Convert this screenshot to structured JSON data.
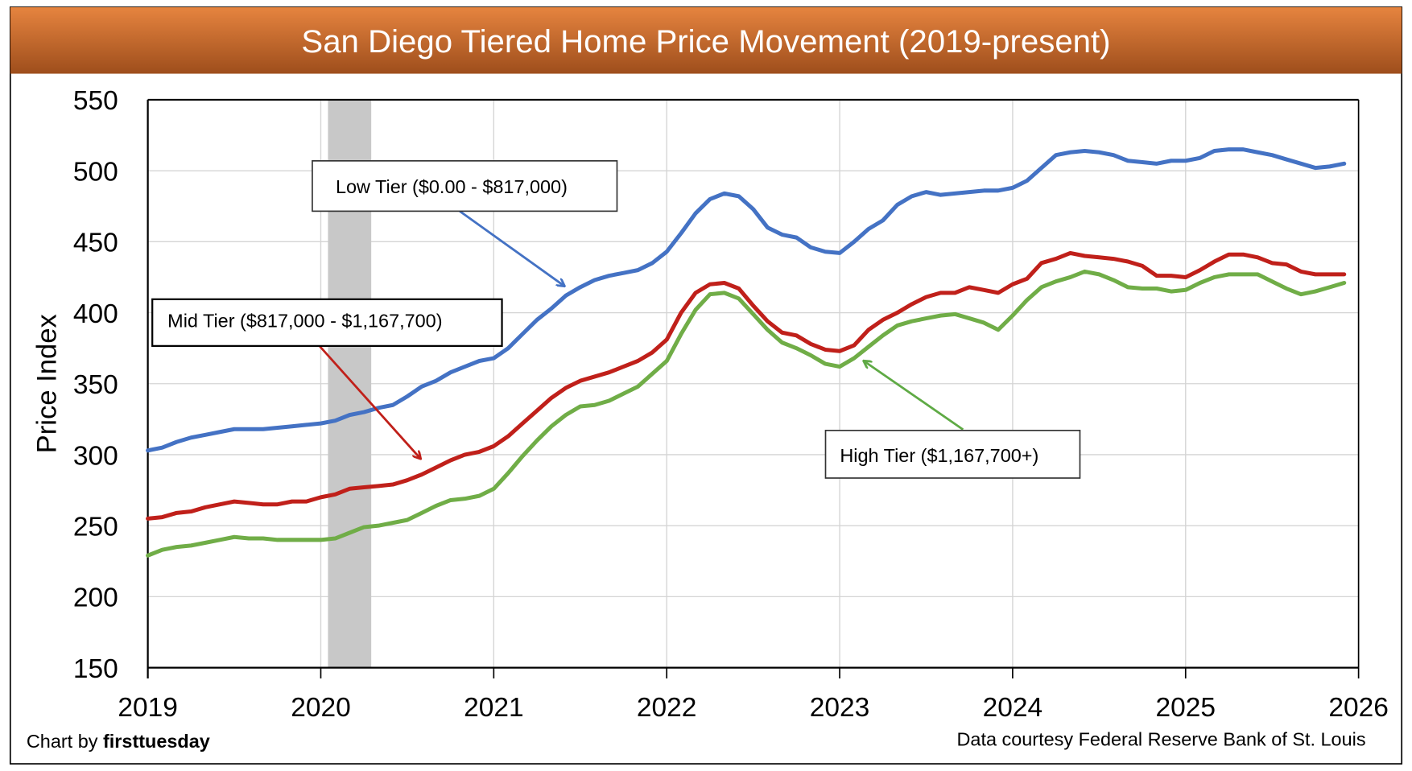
{
  "chart_data": {
    "type": "line",
    "title": "San Diego Tiered Home Price Movement (2019-present)",
    "xlabel": "",
    "ylabel": "Price Index",
    "ylim": [
      150,
      550
    ],
    "yticks": [
      "150",
      "200",
      "250",
      "300",
      "350",
      "400",
      "450",
      "500",
      "550"
    ],
    "xticks": [
      "2019",
      "2020",
      "2021",
      "2022",
      "2023",
      "2024",
      "2025",
      "2026"
    ],
    "x_start": "2019-01",
    "frequency": "monthly",
    "grid": true,
    "recession_shading": {
      "start": "2020-02",
      "end": "2020-04",
      "color": "#c8c8c8"
    },
    "series": [
      {
        "name": "Low Tier ($0.00 - $817,000)",
        "color": "#4472C4",
        "values": [
          303,
          305,
          309,
          312,
          314,
          316,
          318,
          318,
          318,
          319,
          320,
          321,
          322,
          324,
          328,
          330,
          333,
          335,
          341,
          348,
          352,
          358,
          362,
          366,
          368,
          375,
          385,
          395,
          403,
          412,
          418,
          423,
          426,
          428,
          430,
          435,
          443,
          456,
          470,
          480,
          484,
          482,
          473,
          460,
          455,
          453,
          446,
          443,
          442,
          450,
          459,
          465,
          476,
          482,
          485,
          483,
          484,
          485,
          486,
          486,
          488,
          493,
          502,
          511,
          513,
          514,
          513,
          511,
          507,
          506,
          505,
          507,
          507,
          509,
          514,
          515,
          515,
          513,
          511,
          508,
          505,
          502,
          503,
          505
        ]
      },
      {
        "name": "Mid Tier ($817,000 - $1,167,700)",
        "color": "#C0201A",
        "values": [
          255,
          256,
          259,
          260,
          263,
          265,
          267,
          266,
          265,
          265,
          267,
          267,
          270,
          272,
          276,
          277,
          278,
          279,
          282,
          286,
          291,
          296,
          300,
          302,
          306,
          313,
          322,
          331,
          340,
          347,
          352,
          355,
          358,
          362,
          366,
          372,
          381,
          400,
          414,
          420,
          421,
          417,
          405,
          394,
          386,
          384,
          378,
          374,
          373,
          377,
          388,
          395,
          400,
          406,
          411,
          414,
          414,
          418,
          416,
          414,
          420,
          424,
          435,
          438,
          442,
          440,
          439,
          438,
          436,
          433,
          426,
          426,
          425,
          430,
          436,
          441,
          441,
          439,
          435,
          434,
          429,
          427,
          427,
          427
        ]
      },
      {
        "name": "High Tier ($1,167,700+)",
        "color": "#70AD47",
        "values": [
          229,
          233,
          235,
          236,
          238,
          240,
          242,
          241,
          241,
          240,
          240,
          240,
          240,
          241,
          245,
          249,
          250,
          252,
          254,
          259,
          264,
          268,
          269,
          271,
          276,
          287,
          299,
          310,
          320,
          328,
          334,
          335,
          338,
          343,
          348,
          357,
          366,
          385,
          402,
          413,
          414,
          410,
          399,
          388,
          379,
          375,
          370,
          364,
          362,
          368,
          376,
          384,
          391,
          394,
          396,
          398,
          399,
          396,
          393,
          388,
          398,
          409,
          418,
          422,
          425,
          429,
          427,
          423,
          418,
          417,
          417,
          415,
          416,
          421,
          425,
          427,
          427,
          427,
          422,
          417,
          413,
          415,
          418,
          421
        ]
      }
    ],
    "annotations": [
      "Low Tier ($0.00 - $817,000)",
      "Mid Tier ($817,000 - $1,167,700)",
      "High Tier ($1,167,700+)"
    ]
  },
  "footer": {
    "credit_prefix": "Chart by ",
    "credit_brand": "firsttuesday",
    "source": "Data courtesy Federal Reserve Bank of St. Louis"
  },
  "colors": {
    "title_top": "#E6843F",
    "title_bottom": "#9E4E1C"
  }
}
